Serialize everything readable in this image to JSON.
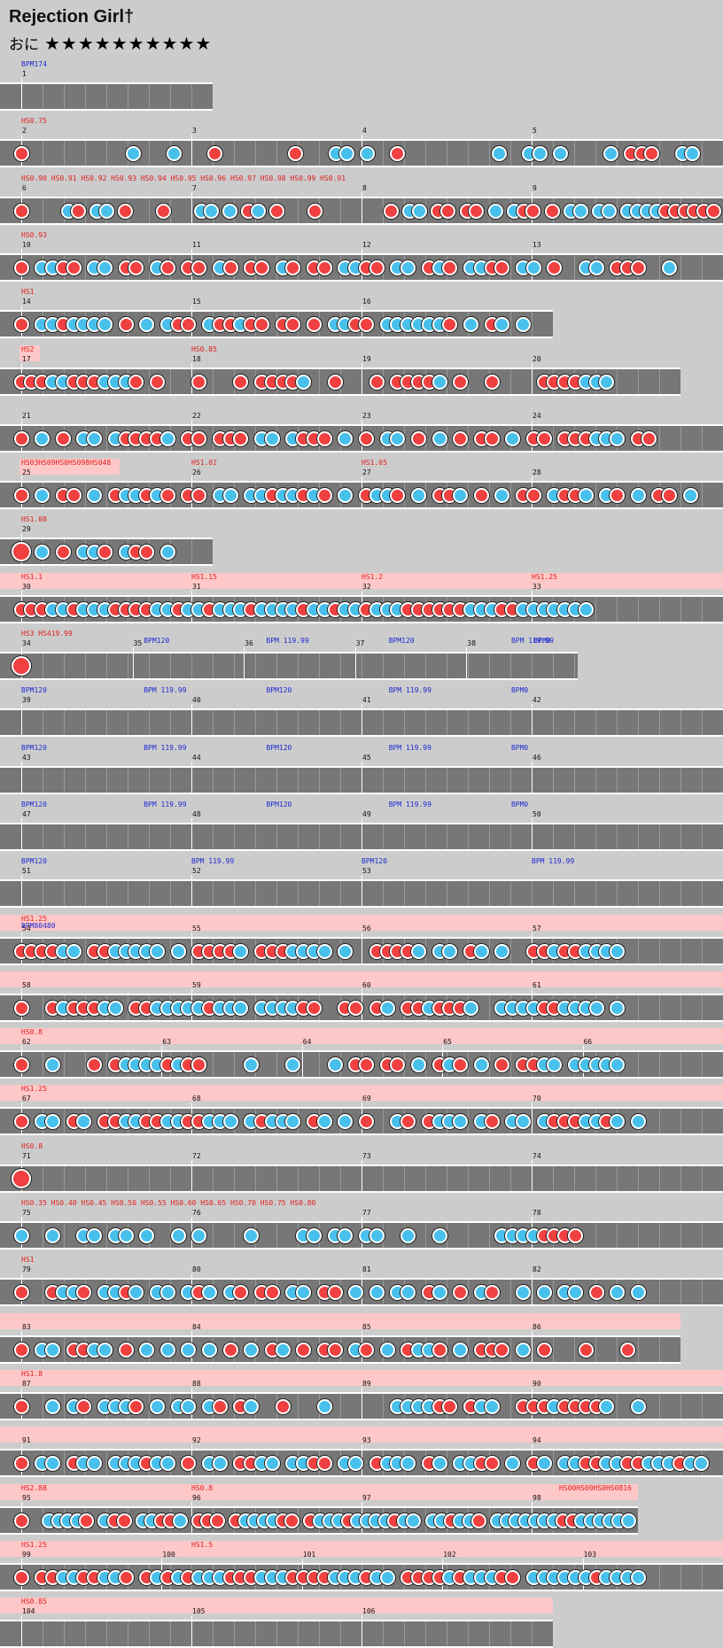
{
  "song": {
    "title": "Rejection Girl†",
    "course": "おに",
    "stars": "★★★★★★★★★★"
  },
  "colors": {
    "don": "#f04040",
    "ka": "#48c0ec",
    "lane": "#777777",
    "highlight": "#ffc8c8",
    "bpm_label": "#1e2bd0",
    "hs_label": "#e02020"
  },
  "rows": [
    {
      "w": "short",
      "measures": [
        "1"
      ],
      "labels": [
        {
          "t": "BPM174",
          "c": "blue"
        }
      ],
      "notes": ""
    },
    {
      "measures": [
        "2",
        "3",
        "4",
        "5"
      ],
      "labels": [
        {
          "t": "HS0.75",
          "c": "red"
        }
      ],
      "notes": "D..........K...K...D.......D...KK.K..D.........K..KK.K....K.DDD..KK.."
    },
    {
      "measures": [
        "6",
        "7",
        "8",
        "9"
      ],
      "labels": [
        {
          "t": "HS0.90 HS0.91 HS0.92 HS0.93 HS0.94 HS0.95 HS0.96 HS0.97 HS0.98 HS0.99 HS0.91",
          "c": "red",
          "pos": "end"
        }
      ],
      "notes": "D....KD.KK.D...D...KK.K.DK.D...D.......D.KK.DD.DD.K.KDD.D.KK.KK.KKKKDDDDDD"
    },
    {
      "measures": [
        "10",
        "11",
        "12",
        "13"
      ],
      "labels": [
        {
          "t": "HS0.93",
          "c": "red"
        }
      ],
      "notes": "D.KKDD.KK.DD.KD.DD.KD.DD.KD.DD.KKDD.KK.DKD.KKDD.KK.D..KK.DDD..K.."
    },
    {
      "w": "mid",
      "measures": [
        "14",
        "15",
        "16"
      ],
      "labels": [
        {
          "t": "HS1",
          "c": "red"
        }
      ],
      "notes": "D.KKDKKKK.D.K.KDD.KDDKDD.DD.D.KKDD.KKKKKKD.K.DK.K"
    },
    {
      "w": "mid2",
      "measures": [
        "17",
        "18",
        "19",
        "20"
      ],
      "labels": [
        {
          "t": "HS2",
          "c": "red",
          "hl": true
        },
        {
          "t": "HS0.85",
          "c": "red"
        }
      ],
      "notes": "DDDKKDDDKKKD.D...D...D.DDDDK..D...D.DDDDK.D..D....DDDDKKK"
    },
    {
      "measures": [
        "21",
        "22",
        "23",
        "24"
      ],
      "labels": [],
      "notes": "D.K.D.KK.KDDDDK.DD.DDD.KK.KDDD.K.D.KK.D.K.D.DD.K.DD.DDDKKK.DD"
    },
    {
      "measures": [
        "25",
        "26",
        "27",
        "28"
      ],
      "labels": [
        {
          "t": "HS03HS09HS0HS098HS048",
          "c": "red",
          "hl": true
        },
        {
          "t": "HS1.02",
          "c": "red"
        },
        {
          "t": "HS1.05",
          "c": "red"
        }
      ],
      "notes": "D.K.DD.K.DKKDKD.DD.KK.KKDKKDKD.K.DKKD.K.DDK.D.K.DD.KDDK.KD.K.DD.K"
    },
    {
      "w": "short",
      "measures": [
        "29"
      ],
      "labels": [
        {
          "t": "HS1.08",
          "c": "red"
        }
      ],
      "notes": "D.K.D.KKD.KDD.K"
    },
    {
      "hl": true,
      "measures": [
        "30",
        "31",
        "32",
        "33"
      ],
      "labels": [
        {
          "t": "HS1.1",
          "c": "red"
        },
        {
          "t": "HS1.15",
          "c": "red"
        },
        {
          "t": "HS1.2",
          "c": "red"
        },
        {
          "t": "HS1.25",
          "c": "red"
        }
      ],
      "notes": "DDDKKDKKKDDDDKKDKKDKKKDKKKKDKKDKKDKKKDDDDDDKKKDDKKKKKKK"
    },
    {
      "w": "mid3",
      "measures": [
        "34",
        "35",
        "36",
        "37",
        "38"
      ],
      "labels": [
        {
          "t": "HS3 HS419.99",
          "c": "red"
        },
        {
          "t": "BPM120",
          "c": "blue"
        },
        {
          "t": "BPM 119.99",
          "c": "blue"
        },
        {
          "t": "BPM120",
          "c": "blue"
        },
        {
          "t": "BPM 119.99",
          "c": "blue"
        },
        {
          "t": "BPM0",
          "c": "blue"
        }
      ],
      "notes": "D"
    },
    {
      "measures": [
        "39",
        "40",
        "41",
        "42"
      ],
      "labels": [
        {
          "t": "BPM120",
          "c": "blue"
        },
        {
          "t": "BPM 119.99",
          "c": "blue"
        },
        {
          "t": "BPM120",
          "c": "blue"
        },
        {
          "t": "BPM 119.99",
          "c": "blue"
        },
        {
          "t": "BPM0",
          "c": "blue"
        }
      ],
      "notes": ""
    },
    {
      "measures": [
        "43",
        "44",
        "45",
        "46"
      ],
      "labels": [
        {
          "t": "BPM120",
          "c": "blue"
        },
        {
          "t": "BPM 119.99",
          "c": "blue"
        },
        {
          "t": "BPM120",
          "c": "blue"
        },
        {
          "t": "BPM 119.99",
          "c": "blue"
        },
        {
          "t": "BPM0",
          "c": "blue"
        }
      ],
      "notes": ""
    },
    {
      "measures": [
        "47",
        "48",
        "49",
        "50"
      ],
      "labels": [
        {
          "t": "BPM120",
          "c": "blue"
        },
        {
          "t": "BPM 119.99",
          "c": "blue"
        },
        {
          "t": "BPM120",
          "c": "blue"
        },
        {
          "t": "BPM 119.99",
          "c": "blue"
        },
        {
          "t": "BPM0",
          "c": "blue"
        }
      ],
      "notes": ""
    },
    {
      "measures": [
        "51",
        "52",
        "53"
      ],
      "labels": [
        {
          "t": "BPM120",
          "c": "blue"
        },
        {
          "t": "BPM 119.99",
          "c": "blue"
        },
        {
          "t": "BPM120",
          "c": "blue"
        },
        {
          "t": "BPM 119.99",
          "c": "blue"
        }
      ],
      "notes": ""
    },
    {
      "hl": true,
      "measures": [
        "54",
        "55",
        "56",
        "57"
      ],
      "labels": [
        {
          "t": "HS1.25",
          "c": "red"
        },
        {
          "t": "BPM80480",
          "c": "blue"
        }
      ],
      "notes": "DDDDKK.DDKKKKK.K.DDDDK.DDDKKKK.K..DDDDK.KK.DK.K..DDKDDKKKK"
    },
    {
      "hl": true,
      "measures": [
        "58",
        "59",
        "60",
        "61"
      ],
      "labels": [],
      "notes": "D..DKDDDKK.DDKKKKKDKKK.KKKKDD..DD.DK.DDKDDDK..KKKKDDKKKK.K"
    },
    {
      "hl": true,
      "measures": [
        "62",
        "63",
        "64",
        "65",
        "66"
      ],
      "labels": [
        {
          "t": "HS0.8",
          "c": "red"
        }
      ],
      "notes": "D..K...D.DKKKKDKDD....K...K...K.DD.DD.K.DKD.K.D.DDKK.KKKKK"
    },
    {
      "hl": true,
      "measures": [
        "67",
        "68",
        "69",
        "70"
      ],
      "labels": [
        {
          "t": "HS1.25",
          "c": "red"
        }
      ],
      "notes": "D.KK.DK.DDKKDDKKDDKKK.KDKKK.DK.K.D..KD.DKKK.KD.KK.KDDDKKDK.K"
    },
    {
      "measures": [
        "71",
        "72",
        "73",
        "74"
      ],
      "labels": [
        {
          "t": "HS0.8",
          "c": "red"
        }
      ],
      "notes": "D"
    },
    {
      "measures": [
        "75",
        "76",
        "77",
        "78"
      ],
      "labels": [
        {
          "t": "HS0.35 HS0.40 HS0.45 HS0.50 HS0.55 HS0.60 HS0.65 HS0.70 HS0.75 HS0.80",
          "c": "red",
          "pos": "end"
        }
      ],
      "notes": "K..K..KK.KK.K..K.K....K....KK.KK.KK..K..K.....KKKKDDDD"
    },
    {
      "measures": [
        "79",
        "80",
        "81",
        "82"
      ],
      "labels": [
        {
          "t": "HS1",
          "c": "red"
        }
      ],
      "notes": "D..DKKD.KKDK.KK.KDK.KD.DD.KK.DD.K.K.KK.DK.D.KD..K.K.KK.D.K.K"
    },
    {
      "hl": true,
      "w": "mid2",
      "measures": [
        "83",
        "84",
        "85",
        "86"
      ],
      "labels": [],
      "notes": "D.KK.DDKK.D.K.K.K.K.D.K.DK.D.DD.KD.K.DKKD.K.DDD.K.D...D...D"
    },
    {
      "hl": true,
      "measures": [
        "87",
        "88",
        "89",
        "90"
      ],
      "labels": [
        {
          "t": "HS1.8",
          "c": "red"
        }
      ],
      "notes": "D..K.KD.KKKD.K.KK.KD.DK..D...K......KKKKDD.DKK..DDDKDDDDK..K"
    },
    {
      "hl": true,
      "measures": [
        "91",
        "92",
        "93",
        "94"
      ],
      "labels": [],
      "notes": "D.KK.DKK.KKKDKK.D.KK.DDKK.KKDD.KK.DKKK.DK.KKDD.K.DK.KKDDKKDDKKKDKK"
    },
    {
      "hl": true,
      "w": "mid4",
      "measures": [
        "95",
        "96",
        "97",
        "98"
      ],
      "labels": [
        {
          "t": "HS2.88",
          "c": "red"
        },
        {
          "t": "HS0.8",
          "c": "red"
        },
        {
          "t": "HS00HS00HS0HS0816",
          "c": "red",
          "pos": "end"
        }
      ],
      "notes": "D..KKKKD.KDD.KKDDK.DDD.DKKKKDD.DKKKDKKKKDKK.KKDKKD.KKKKKKKDDKKKKKK"
    },
    {
      "hl": true,
      "measures": [
        "99",
        "100",
        "101",
        "102",
        "103"
      ],
      "labels": [
        {
          "t": "HS1.25",
          "c": "red"
        },
        {
          "t": "HS1.5",
          "c": "red"
        }
      ],
      "notes": "D.DDKKDDKKD.DKDKDKKKDDDKKKDDDDKKKDKK.DDDDKDKKKDD.KKKKKKDKKKK"
    },
    {
      "hl": true,
      "w": "mid",
      "measures": [
        "104",
        "105",
        "106"
      ],
      "labels": [
        {
          "t": "HS0.85",
          "c": "red"
        }
      ],
      "notes": ""
    }
  ]
}
